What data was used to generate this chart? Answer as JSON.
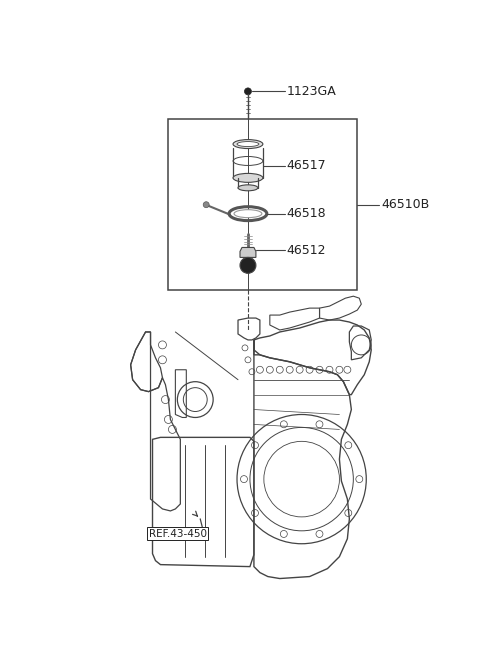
{
  "background_color": "#ffffff",
  "fig_width": 4.8,
  "fig_height": 6.55,
  "dpi": 100,
  "parts": {
    "1123GA": {
      "label": "1123GA"
    },
    "46517": {
      "label": "46517"
    },
    "46518": {
      "label": "46518"
    },
    "46512": {
      "label": "46512"
    },
    "46510B": {
      "label": "46510B"
    }
  },
  "ref_label": "REF.43-450",
  "line_color": "#444444",
  "text_color": "#222222",
  "lw": 0.9
}
